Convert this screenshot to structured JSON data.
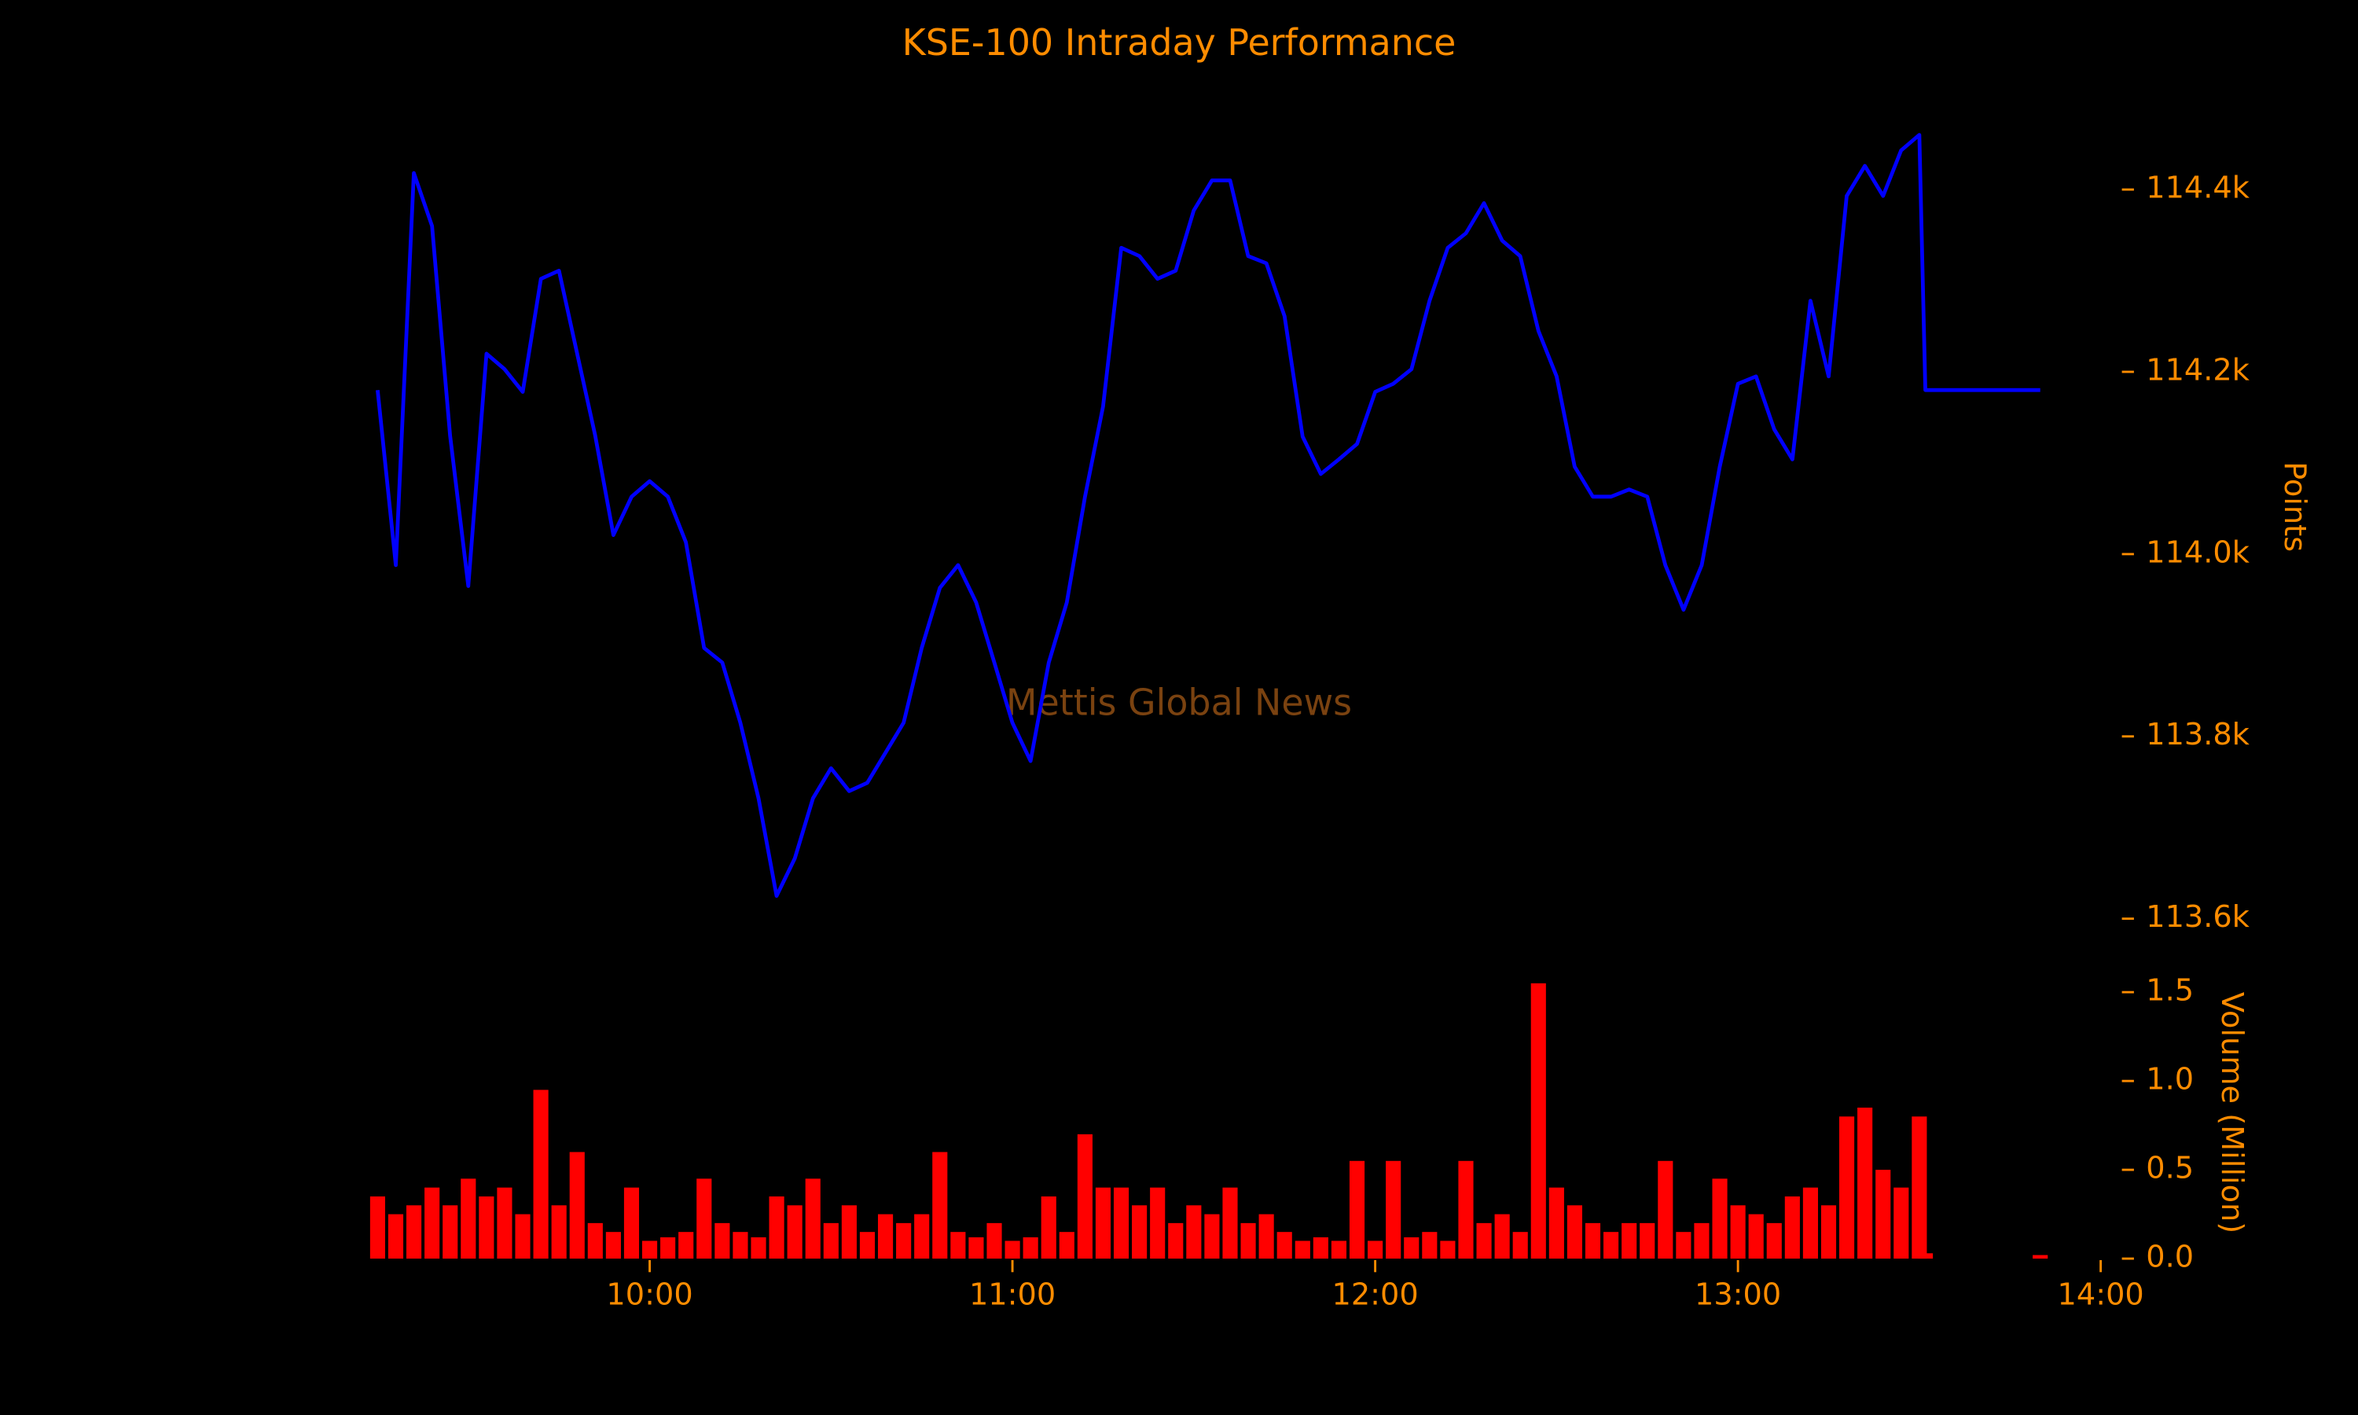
{
  "chart_data": [
    {
      "type": "line",
      "title": "KSE-100 Intraday Performance",
      "annotation": "Mettis Global News",
      "y_label": "Points",
      "x": [
        "09:15",
        "09:18",
        "09:21",
        "09:24",
        "09:27",
        "09:30",
        "09:33",
        "09:36",
        "09:39",
        "09:42",
        "09:45",
        "09:48",
        "09:51",
        "09:54",
        "09:57",
        "10:00",
        "10:03",
        "10:06",
        "10:09",
        "10:12",
        "10:15",
        "10:18",
        "10:21",
        "10:24",
        "10:27",
        "10:30",
        "10:33",
        "10:36",
        "10:39",
        "10:42",
        "10:45",
        "10:48",
        "10:51",
        "10:54",
        "10:57",
        "11:00",
        "11:03",
        "11:06",
        "11:09",
        "11:12",
        "11:15",
        "11:18",
        "11:21",
        "11:24",
        "11:27",
        "11:30",
        "11:33",
        "11:36",
        "11:39",
        "11:42",
        "11:45",
        "11:48",
        "11:51",
        "11:54",
        "11:57",
        "12:00",
        "12:03",
        "12:06",
        "12:09",
        "12:12",
        "12:15",
        "12:18",
        "12:21",
        "12:24",
        "12:27",
        "12:30",
        "12:33",
        "12:36",
        "12:39",
        "12:42",
        "12:45",
        "12:48",
        "12:51",
        "12:54",
        "12:57",
        "13:00",
        "13:03",
        "13:06",
        "13:09",
        "13:12",
        "13:15",
        "13:18",
        "13:21",
        "13:24",
        "13:27",
        "13:30",
        "13:31",
        "13:50"
      ],
      "values": [
        114180,
        113988,
        114418,
        114360,
        114130,
        113965,
        114220,
        114203,
        114178,
        114302,
        114311,
        114220,
        114130,
        114021,
        114063,
        114080,
        114063,
        114013,
        113897,
        113881,
        113815,
        113732,
        113625,
        113666,
        113732,
        113765,
        113740,
        113749,
        113782,
        113815,
        113897,
        113963,
        113988,
        113947,
        113881,
        113815,
        113773,
        113881,
        113947,
        114063,
        114162,
        114336,
        114327,
        114302,
        114311,
        114377,
        114410,
        114410,
        114327,
        114319,
        114261,
        114129,
        114088,
        114104,
        114121,
        114178,
        114187,
        114203,
        114278,
        114336,
        114352,
        114385,
        114344,
        114327,
        114245,
        114195,
        114096,
        114063,
        114063,
        114071,
        114063,
        113988,
        113939,
        113988,
        114096,
        114187,
        114195,
        114137,
        114104,
        114278,
        114195,
        114393,
        114426,
        114393,
        114443,
        114460,
        114180,
        114180
      ],
      "color": "#0000ff",
      "xlim": [
        "09:10",
        "14:05"
      ],
      "ylim": [
        113590,
        114490
      ],
      "yticks": [
        {
          "value": 113600,
          "label": "113.6k"
        },
        {
          "value": 113800,
          "label": "113.8k"
        },
        {
          "value": 114000,
          "label": "114.0k"
        },
        {
          "value": 114200,
          "label": "114.2k"
        },
        {
          "value": 114400,
          "label": "114.4k"
        }
      ]
    },
    {
      "type": "bar",
      "y_label": "Volume (Million)",
      "x": [
        "09:15",
        "09:18",
        "09:21",
        "09:24",
        "09:27",
        "09:30",
        "09:33",
        "09:36",
        "09:39",
        "09:42",
        "09:45",
        "09:48",
        "09:51",
        "09:54",
        "09:57",
        "10:00",
        "10:03",
        "10:06",
        "10:09",
        "10:12",
        "10:15",
        "10:18",
        "10:21",
        "10:24",
        "10:27",
        "10:30",
        "10:33",
        "10:36",
        "10:39",
        "10:42",
        "10:45",
        "10:48",
        "10:51",
        "10:54",
        "10:57",
        "11:00",
        "11:03",
        "11:06",
        "11:09",
        "11:12",
        "11:15",
        "11:18",
        "11:21",
        "11:24",
        "11:27",
        "11:30",
        "11:33",
        "11:36",
        "11:39",
        "11:42",
        "11:45",
        "11:48",
        "11:51",
        "11:54",
        "11:57",
        "12:00",
        "12:03",
        "12:06",
        "12:09",
        "12:12",
        "12:15",
        "12:18",
        "12:21",
        "12:24",
        "12:27",
        "12:30",
        "12:33",
        "12:36",
        "12:39",
        "12:42",
        "12:45",
        "12:48",
        "12:51",
        "12:54",
        "12:57",
        "13:00",
        "13:03",
        "13:06",
        "13:09",
        "13:12",
        "13:15",
        "13:18",
        "13:21",
        "13:24",
        "13:27",
        "13:30",
        "13:31",
        "13:50"
      ],
      "values": [
        0.35,
        0.25,
        0.3,
        0.4,
        0.3,
        0.45,
        0.35,
        0.4,
        0.25,
        0.95,
        0.3,
        0.6,
        0.2,
        0.15,
        0.4,
        0.1,
        0.12,
        0.15,
        0.45,
        0.2,
        0.15,
        0.12,
        0.35,
        0.3,
        0.45,
        0.2,
        0.3,
        0.15,
        0.25,
        0.2,
        0.25,
        0.6,
        0.15,
        0.12,
        0.2,
        0.1,
        0.12,
        0.35,
        0.15,
        0.7,
        0.4,
        0.4,
        0.3,
        0.4,
        0.2,
        0.3,
        0.25,
        0.4,
        0.2,
        0.25,
        0.15,
        0.1,
        0.12,
        0.1,
        0.55,
        0.1,
        0.55,
        0.12,
        0.15,
        0.1,
        0.55,
        0.2,
        0.25,
        0.15,
        1.55,
        0.4,
        0.3,
        0.2,
        0.15,
        0.2,
        0.2,
        0.55,
        0.15,
        0.2,
        0.45,
        0.3,
        0.25,
        0.2,
        0.35,
        0.4,
        0.3,
        0.8,
        0.85,
        0.5,
        0.4,
        0.8,
        0.03,
        0.02
      ],
      "color": "#ff0000",
      "xlim": [
        "09:10",
        "14:05"
      ],
      "ylim": [
        0,
        1.6
      ],
      "xticks": [
        "10:00",
        "11:00",
        "12:00",
        "13:00",
        "14:00"
      ],
      "yticks": [
        {
          "value": 0,
          "label": "0.0"
        },
        0.5,
        {
          "value": 1,
          "label": "1.0"
        },
        1.5
      ]
    }
  ]
}
